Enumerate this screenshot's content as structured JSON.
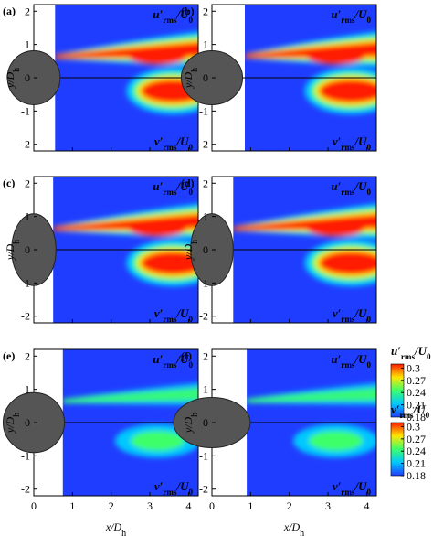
{
  "figure": {
    "panels": [
      {
        "label": "(a)"
      },
      {
        "label": "(b)"
      },
      {
        "label": "(c)"
      },
      {
        "label": "(d)"
      },
      {
        "label": "(e)"
      },
      {
        "label": "(f)"
      }
    ],
    "u_label": [
      "u′",
      "rms",
      "/U",
      "0"
    ],
    "v_label": [
      "v′",
      "rms",
      "/U",
      "0"
    ],
    "axes": {
      "xlim": [
        0,
        4.25
      ],
      "ylim": [
        -2.2,
        2.2
      ],
      "xticks": [
        0,
        1,
        2,
        3,
        4
      ],
      "yticks": [
        2,
        1,
        0,
        -1,
        -2
      ],
      "xlabel": [
        "x/D",
        "h"
      ],
      "ylabel": [
        "y/D",
        "h"
      ]
    },
    "colorbar": {
      "lim": [
        0.18,
        0.31
      ],
      "ticks": [
        0.3,
        0.27,
        0.24,
        0.21,
        0.18
      ]
    }
  }
}
